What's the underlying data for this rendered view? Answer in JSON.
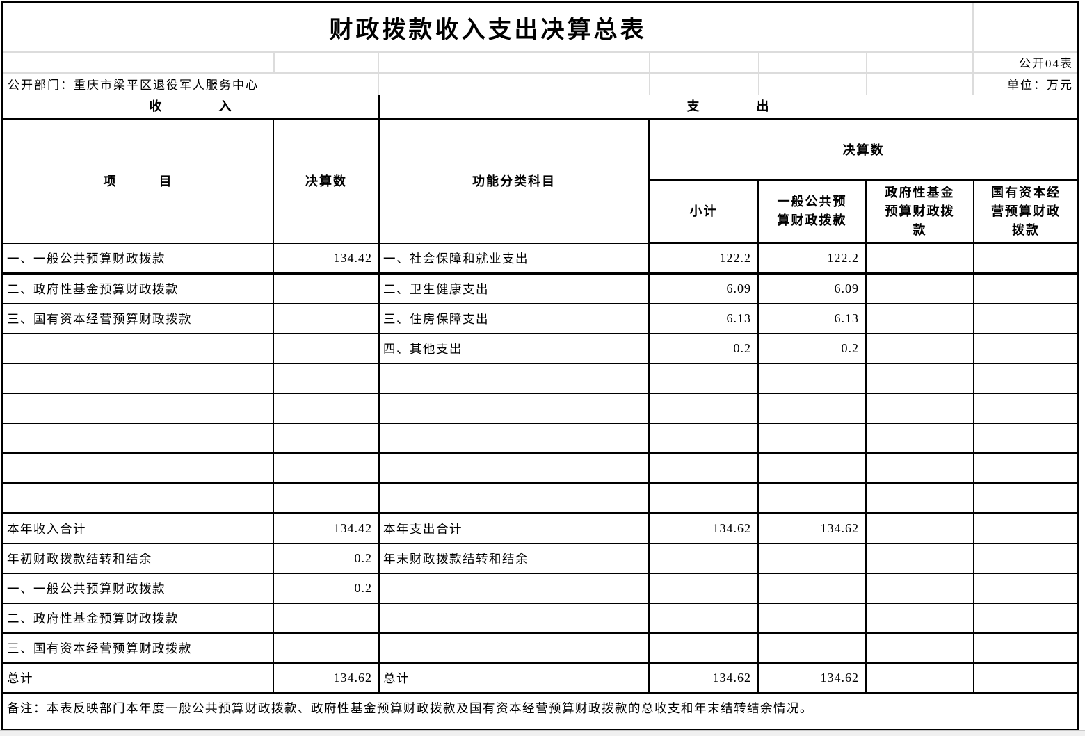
{
  "meta": {
    "title": "财政拨款收入支出决算总表",
    "sheet_label": "公开04表",
    "department": "公开部门：重庆市梁平区退役军人服务中心",
    "unit": "单位：万元",
    "note": "备注：本表反映部门本年度一般公共预算财政拨款、政府性基金预算财政拨款及国有资本经营预算财政拨款的总收支和年末结转结余情况。"
  },
  "headers": {
    "income_section": "收　　　　入",
    "expense_section": "支　　　　出",
    "item": "项　　　目",
    "income_final": "决算数",
    "function_subject": "功能分类科目",
    "expense_final": "决算数",
    "subtotal": "小计",
    "general_budget": "一般公共预算财政拨款",
    "gov_fund": "政府性基金预算财政拨款",
    "state_capital": "国有资本经营预算财政拨款"
  },
  "rows": [
    {
      "income_item": "一、一般公共预算财政拨款",
      "income_value": "134.42",
      "expense_item": "一、社会保障和就业支出",
      "subtotal": "122.2",
      "general": "122.2",
      "gov_fund": "",
      "state_capital": ""
    },
    {
      "income_item": "二、政府性基金预算财政拨款",
      "income_value": "",
      "expense_item": "二、卫生健康支出",
      "subtotal": "6.09",
      "general": "6.09",
      "gov_fund": "",
      "state_capital": ""
    },
    {
      "income_item": "三、国有资本经营预算财政拨款",
      "income_value": "",
      "expense_item": "三、住房保障支出",
      "subtotal": "6.13",
      "general": "6.13",
      "gov_fund": "",
      "state_capital": ""
    },
    {
      "income_item": "",
      "income_value": "",
      "expense_item": "四、其他支出",
      "subtotal": "0.2",
      "general": "0.2",
      "gov_fund": "",
      "state_capital": ""
    },
    {
      "income_item": "",
      "income_value": "",
      "expense_item": "",
      "subtotal": "",
      "general": "",
      "gov_fund": "",
      "state_capital": ""
    },
    {
      "income_item": "",
      "income_value": "",
      "expense_item": "",
      "subtotal": "",
      "general": "",
      "gov_fund": "",
      "state_capital": ""
    },
    {
      "income_item": "",
      "income_value": "",
      "expense_item": "",
      "subtotal": "",
      "general": "",
      "gov_fund": "",
      "state_capital": ""
    },
    {
      "income_item": "",
      "income_value": "",
      "expense_item": "",
      "subtotal": "",
      "general": "",
      "gov_fund": "",
      "state_capital": ""
    },
    {
      "income_item": "",
      "income_value": "",
      "expense_item": "",
      "subtotal": "",
      "general": "",
      "gov_fund": "",
      "state_capital": ""
    },
    {
      "income_item": "本年收入合计",
      "income_value": "134.42",
      "expense_item": "本年支出合计",
      "subtotal": "134.62",
      "general": "134.62",
      "gov_fund": "",
      "state_capital": ""
    },
    {
      "income_item": "年初财政拨款结转和结余",
      "income_value": "0.2",
      "expense_item": "年末财政拨款结转和结余",
      "subtotal": "",
      "general": "",
      "gov_fund": "",
      "state_capital": ""
    },
    {
      "income_item": "一、一般公共预算财政拨款",
      "income_value": "0.2",
      "expense_item": "",
      "subtotal": "",
      "general": "",
      "gov_fund": "",
      "state_capital": ""
    },
    {
      "income_item": "二、政府性基金预算财政拨款",
      "income_value": "",
      "expense_item": "",
      "subtotal": "",
      "general": "",
      "gov_fund": "",
      "state_capital": ""
    },
    {
      "income_item": "三、国有资本经营预算财政拨款",
      "income_value": "",
      "expense_item": "",
      "subtotal": "",
      "general": "",
      "gov_fund": "",
      "state_capital": ""
    },
    {
      "income_item": "总计",
      "income_value": "134.62",
      "expense_item": "总计",
      "subtotal": "134.62",
      "general": "134.62",
      "gov_fund": "",
      "state_capital": ""
    }
  ]
}
